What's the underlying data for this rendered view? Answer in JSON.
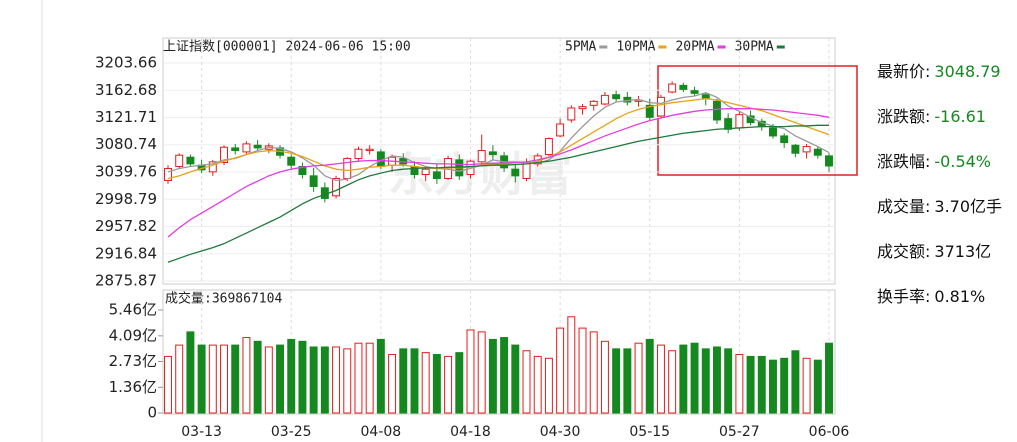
{
  "chart_data": [
    {
      "type": "candlestick",
      "title": "上证指数[000001] 2024-06-06 15:00",
      "watermark": "东方财富",
      "up_color": "#e51c1c",
      "down_color": "#15891f",
      "open": [
        3027,
        3048,
        3062,
        3050,
        3040,
        3054,
        3076,
        3070,
        3080,
        3074,
        3076,
        3062,
        3048,
        3034,
        3016,
        3004,
        3030,
        3060,
        3072,
        3070,
        3050,
        3060,
        3048,
        3036,
        3040,
        3030,
        3058,
        3036,
        3055,
        3070,
        3064,
        3044,
        3030,
        3052,
        3066,
        3094,
        3118,
        3135,
        3140,
        3142,
        3156,
        3152,
        3146,
        3140,
        3124,
        3160,
        3170,
        3162,
        3156,
        3146,
        3120,
        3106,
        3124,
        3116,
        3106,
        3094,
        3080,
        3070,
        3074,
        3064
      ],
      "high": [
        3050,
        3068,
        3066,
        3058,
        3058,
        3080,
        3082,
        3086,
        3088,
        3083,
        3080,
        3066,
        3054,
        3046,
        3024,
        3034,
        3062,
        3078,
        3080,
        3074,
        3066,
        3068,
        3056,
        3048,
        3052,
        3064,
        3066,
        3058,
        3096,
        3080,
        3070,
        3052,
        3060,
        3068,
        3092,
        3120,
        3140,
        3142,
        3148,
        3160,
        3162,
        3160,
        3154,
        3150,
        3156,
        3176,
        3174,
        3168,
        3160,
        3150,
        3128,
        3130,
        3132,
        3120,
        3112,
        3098,
        3082,
        3082,
        3078,
        3068
      ],
      "low": [
        3022,
        3044,
        3048,
        3038,
        3034,
        3050,
        3066,
        3066,
        3072,
        3068,
        3060,
        3045,
        3030,
        3010,
        2994,
        3000,
        3026,
        3056,
        3066,
        3044,
        3040,
        3048,
        3030,
        3026,
        3022,
        3028,
        3028,
        3030,
        3052,
        3058,
        3040,
        3024,
        3026,
        3048,
        3064,
        3092,
        3114,
        3126,
        3132,
        3140,
        3146,
        3140,
        3138,
        3118,
        3120,
        3158,
        3160,
        3154,
        3140,
        3112,
        3098,
        3102,
        3110,
        3102,
        3090,
        3076,
        3062,
        3060,
        3060,
        3040
      ],
      "close": [
        3045,
        3065,
        3052,
        3043,
        3055,
        3077,
        3072,
        3082,
        3076,
        3079,
        3065,
        3050,
        3036,
        3018,
        3000,
        3030,
        3060,
        3074,
        3074,
        3048,
        3062,
        3052,
        3036,
        3044,
        3030,
        3060,
        3034,
        3056,
        3072,
        3066,
        3046,
        3034,
        3054,
        3064,
        3090,
        3112,
        3136,
        3138,
        3146,
        3155,
        3150,
        3145,
        3148,
        3122,
        3152,
        3172,
        3164,
        3158,
        3150,
        3118,
        3104,
        3126,
        3114,
        3108,
        3094,
        3084,
        3068,
        3078,
        3065,
        3048.79
      ],
      "series": [
        {
          "name": "5PMA",
          "color": "#9a9a9a",
          "values": [
            3040,
            3045,
            3048,
            3050,
            3052,
            3058,
            3060,
            3066,
            3072,
            3077,
            3075,
            3070,
            3061,
            3050,
            3034,
            3027,
            3029,
            3036,
            3048,
            3057,
            3064,
            3062,
            3054,
            3048,
            3045,
            3044,
            3041,
            3045,
            3050,
            3058,
            3055,
            3055,
            3054,
            3053,
            3058,
            3071,
            3091,
            3108,
            3124,
            3137,
            3145,
            3147,
            3149,
            3144,
            3143,
            3148,
            3152,
            3154,
            3159,
            3152,
            3139,
            3131,
            3122,
            3114,
            3109,
            3105,
            3094,
            3086,
            3078,
            3069
          ]
        },
        {
          "name": "10PMA",
          "color": "#e8a317",
          "values": [
            3030,
            3034,
            3040,
            3045,
            3050,
            3056,
            3061,
            3066,
            3070,
            3072,
            3071,
            3068,
            3063,
            3056,
            3049,
            3044,
            3042,
            3044,
            3047,
            3048,
            3050,
            3050,
            3048,
            3046,
            3045,
            3046,
            3046,
            3047,
            3050,
            3052,
            3052,
            3051,
            3052,
            3056,
            3062,
            3070,
            3080,
            3090,
            3100,
            3110,
            3120,
            3128,
            3134,
            3138,
            3141,
            3144,
            3146,
            3148,
            3150,
            3148,
            3144,
            3140,
            3136,
            3132,
            3126,
            3120,
            3114,
            3108,
            3102,
            3096
          ]
        },
        {
          "name": "20PMA",
          "color": "#e23de0",
          "values": [
            2942,
            2956,
            2968,
            2978,
            2988,
            2998,
            3008,
            3018,
            3026,
            3034,
            3040,
            3044,
            3047,
            3049,
            3050,
            3052,
            3054,
            3056,
            3057,
            3057,
            3056,
            3055,
            3054,
            3053,
            3052,
            3052,
            3051,
            3051,
            3052,
            3053,
            3053,
            3054,
            3055,
            3058,
            3062,
            3067,
            3073,
            3080,
            3087,
            3094,
            3100,
            3106,
            3112,
            3117,
            3121,
            3125,
            3128,
            3131,
            3133,
            3134,
            3135,
            3135,
            3135,
            3134,
            3133,
            3131,
            3129,
            3127,
            3125,
            3122
          ]
        },
        {
          "name": "30PMA",
          "color": "#1e7a3c",
          "values": [
            2904,
            2910,
            2916,
            2921,
            2926,
            2932,
            2940,
            2948,
            2956,
            2964,
            2972,
            2982,
            2992,
            3000,
            3006,
            3012,
            3020,
            3028,
            3034,
            3038,
            3042,
            3044,
            3045,
            3046,
            3046,
            3047,
            3047,
            3048,
            3049,
            3050,
            3050,
            3051,
            3052,
            3054,
            3056,
            3059,
            3062,
            3066,
            3070,
            3074,
            3078,
            3082,
            3086,
            3089,
            3092,
            3095,
            3098,
            3100,
            3102,
            3104,
            3105,
            3106,
            3107,
            3108,
            3108,
            3108,
            3109,
            3109,
            3110,
            3110
          ]
        }
      ],
      "ylim": [
        2875.87,
        3203.66
      ],
      "yticks": [
        2875.87,
        2916.84,
        2957.82,
        2998.79,
        3039.76,
        3080.74,
        3121.71,
        3162.68,
        3203.66
      ]
    },
    {
      "type": "bar",
      "title": "成交量:369867104",
      "categories": [
        null,
        null,
        null,
        "03-13",
        null,
        null,
        null,
        null,
        null,
        null,
        null,
        "03-25",
        null,
        null,
        null,
        null,
        null,
        null,
        null,
        "04-08",
        null,
        null,
        null,
        null,
        null,
        null,
        null,
        "04-18",
        null,
        null,
        null,
        null,
        null,
        null,
        null,
        "04-30",
        null,
        null,
        null,
        null,
        null,
        null,
        null,
        "05-15",
        null,
        null,
        null,
        null,
        null,
        null,
        null,
        "05-27",
        null,
        null,
        null,
        null,
        null,
        null,
        null,
        "06-06"
      ],
      "values": [
        3.0,
        3.6,
        4.3,
        3.6,
        3.6,
        3.6,
        3.6,
        4.0,
        3.8,
        3.5,
        3.6,
        3.9,
        3.8,
        3.5,
        3.5,
        3.5,
        3.4,
        3.7,
        3.7,
        3.9,
        3.1,
        3.4,
        3.4,
        3.2,
        3.1,
        3.0,
        3.2,
        4.4,
        4.3,
        3.9,
        4.0,
        3.6,
        3.3,
        3.0,
        2.9,
        4.5,
        5.1,
        4.5,
        4.3,
        3.8,
        3.4,
        3.4,
        3.7,
        3.9,
        3.6,
        3.3,
        3.6,
        3.7,
        3.4,
        3.5,
        3.4,
        3.1,
        3.0,
        3.0,
        2.8,
        2.9,
        3.3,
        2.9,
        2.8,
        3.7
      ],
      "ylim": [
        0,
        5.46
      ],
      "yticks": [
        0,
        {
          "value": 1.36,
          "label": "1.36亿"
        },
        {
          "value": 2.73,
          "label": "2.73亿"
        },
        {
          "value": 4.09,
          "label": "4.09亿"
        },
        {
          "value": 5.46,
          "label": "5.46亿"
        }
      ]
    }
  ],
  "quote": [
    {
      "label": "最新价:",
      "value": "3048.79",
      "color": "#15891f"
    },
    {
      "label": "涨跌额:",
      "value": "-16.61",
      "color": "#15891f"
    },
    {
      "label": "涨跌幅:",
      "value": "-0.54%",
      "color": "#15891f"
    },
    {
      "label": "成交量:",
      "value": "3.70亿手",
      "color": "#111111"
    },
    {
      "label": "成交额:",
      "value": "3713亿",
      "color": "#111111"
    },
    {
      "label": "换手率:",
      "value": "0.81%",
      "color": "#111111"
    }
  ]
}
